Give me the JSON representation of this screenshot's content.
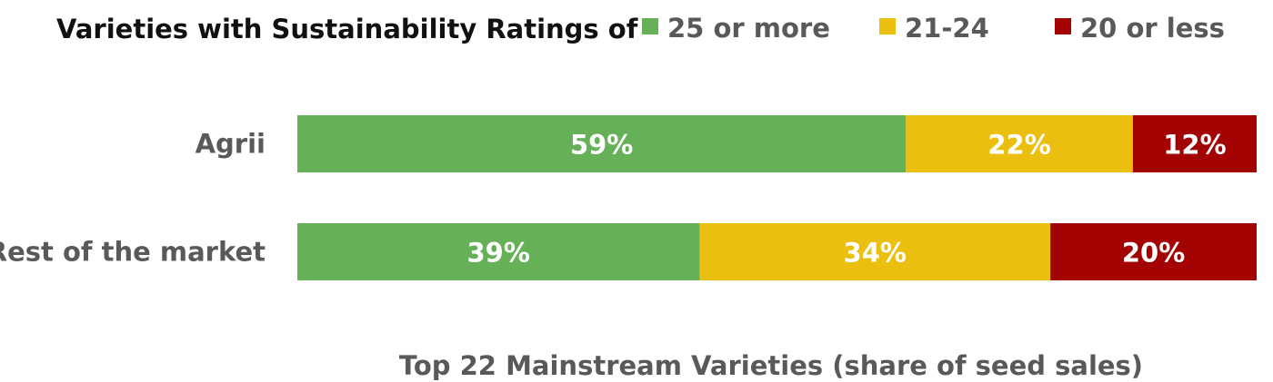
{
  "chart_data": {
    "type": "bar",
    "orientation": "horizontal",
    "stacked": true,
    "legend_title": "Varieties with Sustainability Ratings of",
    "legend_placement": "top",
    "categories": [
      "Agrii",
      "Rest of the market"
    ],
    "series": [
      {
        "name": "25 or more",
        "color": "#66b157",
        "values": [
          59,
          39
        ],
        "labels": [
          "59%",
          "39%"
        ]
      },
      {
        "name": "21-24",
        "color": "#eabf10",
        "values": [
          22,
          34
        ],
        "labels": [
          "22%",
          "34%"
        ]
      },
      {
        "name": "20 or less",
        "color": "#a30303",
        "values": [
          12,
          20
        ],
        "labels": [
          "12%",
          "20%"
        ]
      }
    ],
    "xlabel": "Top 22 Mainstream Varieties (share of seed sales)",
    "ylabel": "",
    "grid": false
  }
}
